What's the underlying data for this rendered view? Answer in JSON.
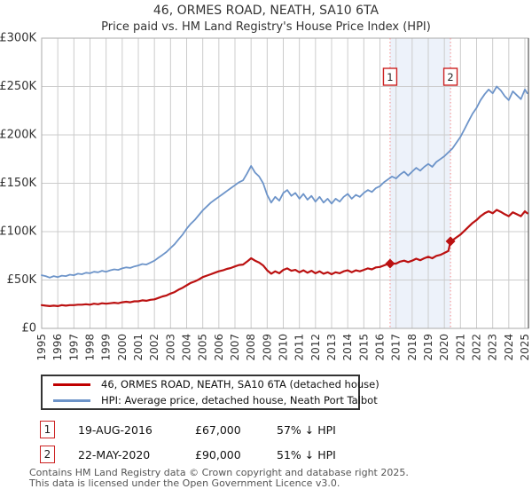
{
  "title": "46, ORMES ROAD, NEATH, SA10 6TA",
  "subtitle": "Price paid vs. HM Land Registry's House Price Index (HPI)",
  "legend": {
    "items": [
      {
        "label": "46, ORMES ROAD, NEATH, SA10 6TA (detached house)",
        "color": "#c00000"
      },
      {
        "label": "HPI: Average price, detached house, Neath Port Talbot",
        "color": "#6d94c9"
      }
    ]
  },
  "transactions": [
    {
      "num": "1",
      "date": "19-AUG-2016",
      "price": "£67,000",
      "hpi": "57% ↓ HPI"
    },
    {
      "num": "2",
      "date": "22-MAY-2020",
      "price": "£90,000",
      "hpi": "51% ↓ HPI"
    }
  ],
  "footer": {
    "line1": "Contains HM Land Registry data © Crown copyright and database right 2025.",
    "line2": "This data is licensed under the Open Government Licence v3.0."
  },
  "chart_data": {
    "type": "line",
    "y_unit": "GBP_thousands",
    "xlim": [
      1995,
      2025.2
    ],
    "ylim": [
      0,
      300
    ],
    "grid": true,
    "yticks": [
      0,
      50,
      100,
      150,
      200,
      250,
      300
    ],
    "ytick_labels": [
      "£0",
      "£50K",
      "£100K",
      "£150K",
      "£200K",
      "£250K",
      "£300K"
    ],
    "xticks": [
      1995,
      1996,
      1997,
      1998,
      1999,
      2000,
      2001,
      2002,
      2003,
      2004,
      2005,
      2006,
      2007,
      2008,
      2009,
      2010,
      2011,
      2012,
      2013,
      2014,
      2015,
      2016,
      2017,
      2018,
      2019,
      2020,
      2021,
      2022,
      2023,
      2024,
      2025
    ],
    "xtick_labels": [
      "1995",
      "1996",
      "1997",
      "1998",
      "1999",
      "2000",
      "2001",
      "2002",
      "2003",
      "2004",
      "2005",
      "2006",
      "2007",
      "2008",
      "2009",
      "2010",
      "2011",
      "2012",
      "2013",
      "2014",
      "2015",
      "2016",
      "2017",
      "2018",
      "2019",
      "2020",
      "2021",
      "2022",
      "2023",
      "2024",
      "2025"
    ],
    "shaded_band": {
      "x1": 2016.63,
      "x2": 2020.38
    },
    "sale_markers": [
      {
        "label": "1",
        "x": 2016.63,
        "y": 67
      },
      {
        "label": "2",
        "x": 2020.38,
        "y": 90
      }
    ],
    "colors": {
      "property_line": "#bb1111",
      "hpi_line": "#6d94c9",
      "vline": "#f58a8a",
      "band": "rgba(110,145,210,0.12)",
      "grid": "#cccccc",
      "spine": "#aaaaaa",
      "right_spine": "#555555",
      "flag_border": "#cc2222",
      "tick_text": "#333333"
    },
    "series": [
      {
        "name": "HPI: Average price, detached house, Neath Port Talbot",
        "color_key": "hpi_line",
        "width": 1.8,
        "points": [
          [
            1995,
            55
          ],
          [
            1995.25,
            54
          ],
          [
            1995.5,
            52.5
          ],
          [
            1995.75,
            54
          ],
          [
            1996,
            53
          ],
          [
            1996.25,
            54.5
          ],
          [
            1996.5,
            54
          ],
          [
            1996.75,
            55.5
          ],
          [
            1997,
            55
          ],
          [
            1997.25,
            56.5
          ],
          [
            1997.5,
            56
          ],
          [
            1997.75,
            57.5
          ],
          [
            1998,
            57
          ],
          [
            1998.25,
            58.5
          ],
          [
            1998.5,
            58
          ],
          [
            1998.75,
            59.5
          ],
          [
            1999,
            58.5
          ],
          [
            1999.25,
            60
          ],
          [
            1999.5,
            61
          ],
          [
            1999.75,
            60.5
          ],
          [
            2000,
            62
          ],
          [
            2000.25,
            63
          ],
          [
            2000.5,
            62.5
          ],
          [
            2000.75,
            64
          ],
          [
            2001,
            65
          ],
          [
            2001.25,
            66.5
          ],
          [
            2001.5,
            66
          ],
          [
            2001.75,
            68
          ],
          [
            2002,
            70
          ],
          [
            2002.25,
            73
          ],
          [
            2002.5,
            76
          ],
          [
            2002.75,
            79
          ],
          [
            2003,
            83
          ],
          [
            2003.25,
            87
          ],
          [
            2003.5,
            92
          ],
          [
            2003.75,
            97
          ],
          [
            2004,
            103
          ],
          [
            2004.25,
            108
          ],
          [
            2004.5,
            112
          ],
          [
            2004.75,
            117
          ],
          [
            2005,
            122
          ],
          [
            2005.25,
            126
          ],
          [
            2005.5,
            130
          ],
          [
            2005.75,
            133
          ],
          [
            2006,
            136
          ],
          [
            2006.25,
            139
          ],
          [
            2006.5,
            142
          ],
          [
            2006.75,
            145
          ],
          [
            2007,
            148
          ],
          [
            2007.25,
            151
          ],
          [
            2007.5,
            153
          ],
          [
            2007.75,
            160
          ],
          [
            2008,
            168
          ],
          [
            2008.25,
            161
          ],
          [
            2008.5,
            157
          ],
          [
            2008.75,
            150
          ],
          [
            2009,
            138
          ],
          [
            2009.25,
            130
          ],
          [
            2009.5,
            136
          ],
          [
            2009.75,
            132
          ],
          [
            2010,
            140
          ],
          [
            2010.25,
            143
          ],
          [
            2010.5,
            137
          ],
          [
            2010.75,
            140
          ],
          [
            2011,
            134
          ],
          [
            2011.25,
            139
          ],
          [
            2011.5,
            133
          ],
          [
            2011.75,
            137
          ],
          [
            2012,
            131
          ],
          [
            2012.25,
            136
          ],
          [
            2012.5,
            130
          ],
          [
            2012.75,
            134
          ],
          [
            2013,
            129
          ],
          [
            2013.25,
            134
          ],
          [
            2013.5,
            131
          ],
          [
            2013.75,
            136
          ],
          [
            2014,
            139
          ],
          [
            2014.25,
            134
          ],
          [
            2014.5,
            138
          ],
          [
            2014.75,
            136
          ],
          [
            2015,
            140
          ],
          [
            2015.25,
            143
          ],
          [
            2015.5,
            141
          ],
          [
            2015.75,
            145
          ],
          [
            2016,
            147
          ],
          [
            2016.25,
            151
          ],
          [
            2016.5,
            154
          ],
          [
            2016.75,
            157
          ],
          [
            2017,
            155
          ],
          [
            2017.25,
            159
          ],
          [
            2017.5,
            162
          ],
          [
            2017.75,
            158
          ],
          [
            2018,
            162
          ],
          [
            2018.25,
            166
          ],
          [
            2018.5,
            163
          ],
          [
            2018.75,
            167
          ],
          [
            2019,
            170
          ],
          [
            2019.25,
            167
          ],
          [
            2019.5,
            172
          ],
          [
            2019.75,
            175
          ],
          [
            2020,
            178
          ],
          [
            2020.25,
            182
          ],
          [
            2020.5,
            186
          ],
          [
            2020.75,
            192
          ],
          [
            2021,
            198
          ],
          [
            2021.25,
            206
          ],
          [
            2021.5,
            214
          ],
          [
            2021.75,
            222
          ],
          [
            2022,
            228
          ],
          [
            2022.25,
            236
          ],
          [
            2022.5,
            242
          ],
          [
            2022.75,
            247
          ],
          [
            2023,
            243
          ],
          [
            2023.25,
            250
          ],
          [
            2023.5,
            246
          ],
          [
            2023.75,
            240
          ],
          [
            2024,
            236
          ],
          [
            2024.25,
            245
          ],
          [
            2024.5,
            241
          ],
          [
            2024.75,
            237
          ],
          [
            2025,
            247
          ],
          [
            2025.15,
            243
          ]
        ]
      },
      {
        "name": "46, ORMES ROAD, NEATH, SA10 6TA (detached house)",
        "color_key": "property_line",
        "width": 2.2,
        "points": [
          [
            1995,
            24
          ],
          [
            1995.25,
            23.5
          ],
          [
            1995.5,
            23
          ],
          [
            1995.75,
            23.5
          ],
          [
            1996,
            23
          ],
          [
            1996.25,
            24
          ],
          [
            1996.5,
            23.5
          ],
          [
            1996.75,
            24
          ],
          [
            1997,
            24
          ],
          [
            1997.25,
            24.5
          ],
          [
            1997.5,
            24.5
          ],
          [
            1997.75,
            25
          ],
          [
            1998,
            24.5
          ],
          [
            1998.25,
            25.5
          ],
          [
            1998.5,
            25
          ],
          [
            1998.75,
            26
          ],
          [
            1999,
            25.5
          ],
          [
            1999.25,
            26
          ],
          [
            1999.5,
            26.5
          ],
          [
            1999.75,
            26
          ],
          [
            2000,
            27
          ],
          [
            2000.25,
            27.5
          ],
          [
            2000.5,
            27
          ],
          [
            2000.75,
            28
          ],
          [
            2001,
            28
          ],
          [
            2001.25,
            29
          ],
          [
            2001.5,
            28.5
          ],
          [
            2001.75,
            29.5
          ],
          [
            2002,
            30
          ],
          [
            2002.25,
            31.5
          ],
          [
            2002.5,
            33
          ],
          [
            2002.75,
            34
          ],
          [
            2003,
            36
          ],
          [
            2003.25,
            37.5
          ],
          [
            2003.5,
            40
          ],
          [
            2003.75,
            42
          ],
          [
            2004,
            44.5
          ],
          [
            2004.25,
            47
          ],
          [
            2004.5,
            48.5
          ],
          [
            2004.75,
            50.5
          ],
          [
            2005,
            53
          ],
          [
            2005.25,
            54.5
          ],
          [
            2005.5,
            56
          ],
          [
            2005.75,
            57.5
          ],
          [
            2006,
            59
          ],
          [
            2006.25,
            60
          ],
          [
            2006.5,
            61.5
          ],
          [
            2006.75,
            62.5
          ],
          [
            2007,
            64
          ],
          [
            2007.25,
            65.5
          ],
          [
            2007.5,
            66
          ],
          [
            2007.75,
            69
          ],
          [
            2008,
            72.5
          ],
          [
            2008.25,
            70
          ],
          [
            2008.5,
            68
          ],
          [
            2008.75,
            65
          ],
          [
            2009,
            60
          ],
          [
            2009.25,
            56.5
          ],
          [
            2009.5,
            59
          ],
          [
            2009.75,
            57
          ],
          [
            2010,
            60.5
          ],
          [
            2010.25,
            62
          ],
          [
            2010.5,
            59.5
          ],
          [
            2010.75,
            60.5
          ],
          [
            2011,
            58
          ],
          [
            2011.25,
            60
          ],
          [
            2011.5,
            57.5
          ],
          [
            2011.75,
            59.5
          ],
          [
            2012,
            57
          ],
          [
            2012.25,
            59
          ],
          [
            2012.5,
            56.5
          ],
          [
            2012.75,
            58
          ],
          [
            2013,
            56
          ],
          [
            2013.25,
            58
          ],
          [
            2013.5,
            57
          ],
          [
            2013.75,
            59
          ],
          [
            2014,
            60
          ],
          [
            2014.25,
            58
          ],
          [
            2014.5,
            60
          ],
          [
            2014.75,
            59
          ],
          [
            2015,
            60.5
          ],
          [
            2015.25,
            62
          ],
          [
            2015.5,
            61
          ],
          [
            2015.75,
            63
          ],
          [
            2016,
            63.5
          ],
          [
            2016.25,
            65
          ],
          [
            2016.5,
            66.5
          ],
          [
            2016.63,
            67
          ],
          [
            2017,
            67
          ],
          [
            2017.25,
            69
          ],
          [
            2017.5,
            70
          ],
          [
            2017.75,
            68.5
          ],
          [
            2018,
            70
          ],
          [
            2018.25,
            72
          ],
          [
            2018.5,
            70.5
          ],
          [
            2018.75,
            72.5
          ],
          [
            2019,
            74
          ],
          [
            2019.25,
            72.5
          ],
          [
            2019.5,
            75
          ],
          [
            2019.75,
            76
          ],
          [
            2020,
            78
          ],
          [
            2020.25,
            80
          ],
          [
            2020.38,
            90
          ],
          [
            2020.5,
            91
          ],
          [
            2020.75,
            94
          ],
          [
            2021,
            97
          ],
          [
            2021.25,
            101
          ],
          [
            2021.5,
            105
          ],
          [
            2021.75,
            109
          ],
          [
            2022,
            112
          ],
          [
            2022.25,
            116
          ],
          [
            2022.5,
            119
          ],
          [
            2022.75,
            121
          ],
          [
            2023,
            119
          ],
          [
            2023.25,
            122.5
          ],
          [
            2023.5,
            120.5
          ],
          [
            2023.75,
            118
          ],
          [
            2024,
            116
          ],
          [
            2024.25,
            120
          ],
          [
            2024.5,
            118
          ],
          [
            2024.75,
            116
          ],
          [
            2025,
            121
          ],
          [
            2025.15,
            119
          ]
        ]
      }
    ]
  }
}
